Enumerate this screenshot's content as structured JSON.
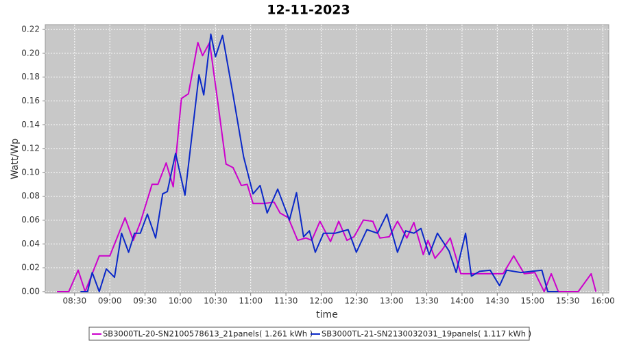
{
  "chart_data": {
    "type": "line",
    "title": "12-11-2023",
    "x_label": "time",
    "y_label": "Watt/Wp",
    "xlim": [
      "08:05",
      "16:05"
    ],
    "xticks": [
      "08:30",
      "09:00",
      "09:30",
      "10:00",
      "10:30",
      "11:00",
      "11:30",
      "12:00",
      "12:30",
      "13:00",
      "13:30",
      "14:00",
      "14:30",
      "15:00",
      "15:30",
      "16:00"
    ],
    "ylim": [
      0,
      0.224
    ],
    "yticks": [
      {
        "value": 0,
        "label": "0.00"
      },
      0.02,
      0.04,
      0.06,
      0.08,
      {
        "value": 0.1,
        "label": "0.10"
      },
      0.12,
      0.14,
      0.16,
      0.18,
      {
        "value": 0.2,
        "label": "0.20"
      },
      0.22
    ],
    "grid": true,
    "legend": "bottom",
    "series": [
      {
        "name": "SB3000TL-20-SN2100578613_21panels( 1.261 kWh )",
        "color": "#cc00cc",
        "x": [
          "08:15",
          "08:25",
          "08:33",
          "08:39",
          "08:51",
          "09:00",
          "09:13",
          "09:20",
          "09:26",
          "09:36",
          "09:41",
          "09:48",
          "09:54",
          "10:01",
          "10:07",
          "10:15",
          "10:19",
          "10:25",
          "10:32",
          "10:39",
          "10:45",
          "10:52",
          "10:57",
          "11:02",
          "11:11",
          "11:20",
          "11:25",
          "11:32",
          "11:40",
          "11:47",
          "11:52",
          "11:59",
          "12:08",
          "12:15",
          "12:22",
          "12:28",
          "12:36",
          "12:44",
          "12:50",
          "12:58",
          "13:05",
          "13:13",
          "13:19",
          "13:27",
          "13:31",
          "13:37",
          "13:43",
          "13:50",
          "13:59",
          "14:15",
          "14:35",
          "14:44",
          "14:53",
          "15:02",
          "15:10",
          "15:16",
          "15:22",
          "15:39",
          "15:50",
          "15:54"
        ],
        "values": [
          0,
          0,
          0.018,
          0,
          0.03,
          0.03,
          0.062,
          0.043,
          0.058,
          0.09,
          0.09,
          0.108,
          0.088,
          0.162,
          0.166,
          0.209,
          0.198,
          0.209,
          0.159,
          0.107,
          0.104,
          0.089,
          0.09,
          0.074,
          0.074,
          0.075,
          0.066,
          0.062,
          0.043,
          0.045,
          0.043,
          0.059,
          0.042,
          0.059,
          0.043,
          0.046,
          0.06,
          0.059,
          0.045,
          0.046,
          0.059,
          0.045,
          0.058,
          0.031,
          0.043,
          0.028,
          0.035,
          0.045,
          0.015,
          0.015,
          0.015,
          0.03,
          0.015,
          0.016,
          0,
          0.015,
          0,
          0,
          0.015,
          0
        ]
      },
      {
        "name": "SB3000TL-21-SN2130032031_19panels( 1.117 kWh )",
        "color": "#0a28c8",
        "x": [
          "08:35",
          "08:41",
          "08:45",
          "08:51",
          "08:57",
          "09:04",
          "09:10",
          "09:16",
          "09:21",
          "09:26",
          "09:32",
          "09:39",
          "09:45",
          "09:49",
          "09:56",
          "10:04",
          "10:16",
          "10:20",
          "10:26",
          "10:30",
          "10:36",
          "10:45",
          "10:54",
          "11:02",
          "11:08",
          "11:14",
          "11:23",
          "11:33",
          "11:39",
          "11:45",
          "11:50",
          "11:55",
          "12:02",
          "12:12",
          "12:23",
          "12:30",
          "12:39",
          "12:48",
          "12:56",
          "13:05",
          "13:12",
          "13:19",
          "13:25",
          "13:32",
          "13:39",
          "13:49",
          "13:55",
          "14:03",
          "14:08",
          "14:15",
          "14:24",
          "14:32",
          "14:38",
          "14:50",
          "15:08",
          "15:13",
          "15:22"
        ],
        "values": [
          0,
          0,
          0.016,
          0,
          0.019,
          0.012,
          0.049,
          0.033,
          0.049,
          0.049,
          0.065,
          0.045,
          0.082,
          0.084,
          0.116,
          0.081,
          0.182,
          0.165,
          0.216,
          0.197,
          0.215,
          0.165,
          0.113,
          0.082,
          0.089,
          0.066,
          0.086,
          0.06,
          0.083,
          0.046,
          0.051,
          0.033,
          0.049,
          0.049,
          0.052,
          0.033,
          0.052,
          0.049,
          0.065,
          0.033,
          0.051,
          0.049,
          0.053,
          0.031,
          0.049,
          0.034,
          0.016,
          0.049,
          0.013,
          0.017,
          0.018,
          0.005,
          0.018,
          0.016,
          0.018,
          0,
          0
        ]
      }
    ]
  }
}
